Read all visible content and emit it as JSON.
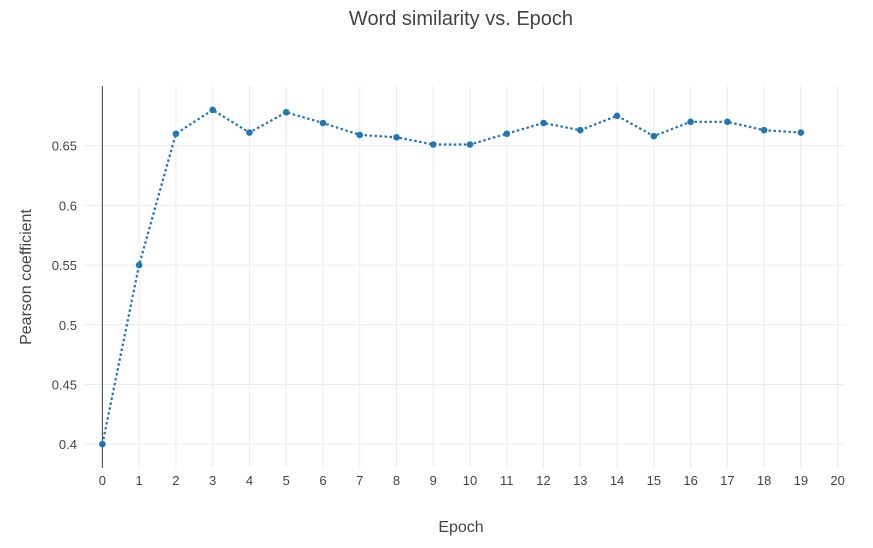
{
  "chart_data": {
    "type": "line",
    "title": "Word similarity vs. Epoch",
    "xlabel": "Epoch",
    "ylabel": "Pearson coefficient",
    "xlim": [
      -0.5,
      20.2
    ],
    "ylim": [
      0.38,
      0.7
    ],
    "x_ticks": [
      "0",
      "1",
      "2",
      "3",
      "4",
      "5",
      "6",
      "7",
      "8",
      "9",
      "10",
      "11",
      "12",
      "13",
      "14",
      "15",
      "16",
      "17",
      "18",
      "19",
      "20"
    ],
    "y_ticks": [
      "0.4",
      "0.45",
      "0.5",
      "0.55",
      "0.6",
      "0.65"
    ],
    "grid": true,
    "line_style": "dotted",
    "color": "#1f77b4",
    "series": [
      {
        "x": [
          0,
          1,
          2,
          3,
          4,
          5,
          6,
          7,
          8,
          9,
          10,
          11,
          12,
          13,
          14,
          15,
          16,
          17,
          18,
          19
        ],
        "y": [
          0.4,
          0.55,
          0.66,
          0.68,
          0.661,
          0.678,
          0.669,
          0.659,
          0.657,
          0.651,
          0.651,
          0.66,
          0.669,
          0.663,
          0.675,
          0.658,
          0.67,
          0.67,
          0.663,
          0.661
        ]
      }
    ]
  }
}
